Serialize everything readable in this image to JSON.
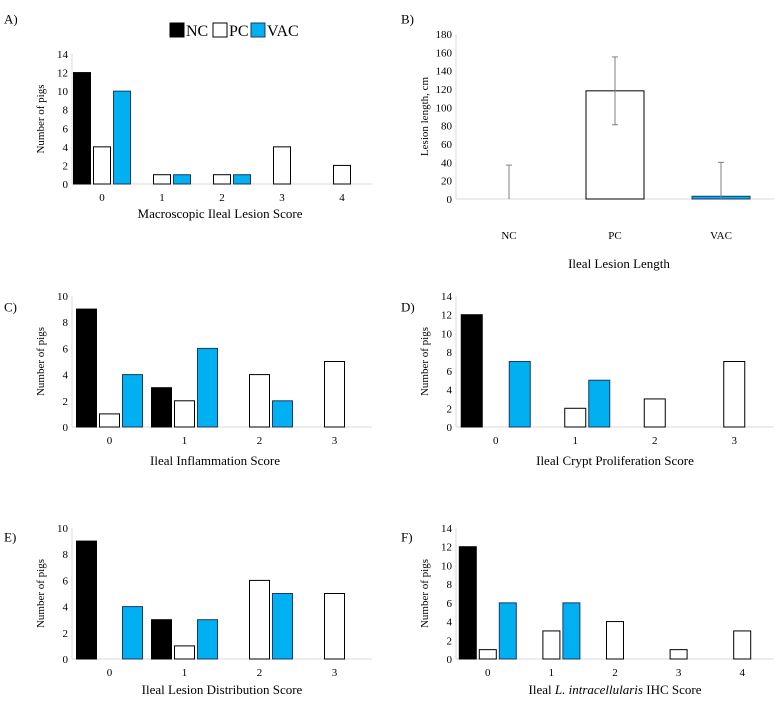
{
  "legend": {
    "items": [
      {
        "name": "NC",
        "color": "#000000"
      },
      {
        "name": "PC",
        "color": "#ffffff"
      },
      {
        "name": "VAC",
        "color": "#00b0f0"
      }
    ]
  },
  "chart_data": [
    {
      "id": "A",
      "label": "A)",
      "type": "bar",
      "xlabel": "Macroscopic Ileal Lesion Score",
      "ylabel": "Number of pigs",
      "ylim": [
        0,
        14
      ],
      "yticks": [
        0,
        2,
        4,
        6,
        8,
        10,
        12,
        14
      ],
      "categories": [
        "0",
        "1",
        "2",
        "3",
        "4"
      ],
      "series": [
        {
          "name": "NC",
          "values": [
            12,
            0,
            0,
            0,
            0
          ]
        },
        {
          "name": "PC",
          "values": [
            4,
            1,
            1,
            4,
            2
          ]
        },
        {
          "name": "VAC",
          "values": [
            10,
            1,
            1,
            0,
            0
          ]
        }
      ]
    },
    {
      "id": "B",
      "label": "B)",
      "type": "bar",
      "xlabel": "Ileal Lesion Length",
      "ylabel": "Lesion length, cm",
      "ylim": [
        0,
        180
      ],
      "yticks": [
        0,
        20,
        40,
        60,
        80,
        100,
        120,
        140,
        160,
        180
      ],
      "categories": [
        "NC",
        "PC",
        "VAC"
      ],
      "values": [
        0,
        118,
        3
      ],
      "error": [
        37,
        37,
        37
      ],
      "colors": [
        "#000000",
        "#ffffff",
        "#00b0f0"
      ]
    },
    {
      "id": "C",
      "label": "C)",
      "type": "bar",
      "xlabel": "Ileal Inflammation Score",
      "ylabel": "Number of pigs",
      "ylim": [
        0,
        10
      ],
      "yticks": [
        0,
        2,
        4,
        6,
        8,
        10
      ],
      "categories": [
        "0",
        "1",
        "2",
        "3"
      ],
      "series": [
        {
          "name": "NC",
          "values": [
            9,
            3,
            0,
            0
          ]
        },
        {
          "name": "PC",
          "values": [
            1,
            2,
            4,
            5
          ]
        },
        {
          "name": "VAC",
          "values": [
            4,
            6,
            2,
            0
          ]
        }
      ]
    },
    {
      "id": "D",
      "label": "D)",
      "type": "bar",
      "xlabel": "Ileal Crypt Proliferation Score",
      "ylabel": "Number of pigs",
      "ylim": [
        0,
        14
      ],
      "yticks": [
        0,
        2,
        4,
        6,
        8,
        10,
        12,
        14
      ],
      "categories": [
        "0",
        "1",
        "2",
        "3"
      ],
      "series": [
        {
          "name": "NC",
          "values": [
            12,
            0,
            0,
            0
          ]
        },
        {
          "name": "PC",
          "values": [
            0,
            2,
            3,
            7
          ]
        },
        {
          "name": "VAC",
          "values": [
            7,
            5,
            0,
            0
          ]
        }
      ]
    },
    {
      "id": "E",
      "label": "E)",
      "type": "bar",
      "xlabel": "Ileal Lesion Distribution Score",
      "ylabel": "Number of pigs",
      "ylim": [
        0,
        10
      ],
      "yticks": [
        0,
        2,
        4,
        6,
        8,
        10
      ],
      "categories": [
        "0",
        "1",
        "2",
        "3"
      ],
      "series": [
        {
          "name": "NC",
          "values": [
            9,
            3,
            0,
            0
          ]
        },
        {
          "name": "PC",
          "values": [
            0,
            1,
            6,
            5
          ]
        },
        {
          "name": "VAC",
          "values": [
            4,
            3,
            5,
            0
          ]
        }
      ]
    },
    {
      "id": "F",
      "label": "F)",
      "type": "bar",
      "xlabel_parts": [
        "Ileal ",
        "L. intracellularis",
        " IHC Score"
      ],
      "ylabel": "Number of pigs",
      "ylim": [
        0,
        14
      ],
      "yticks": [
        0,
        2,
        4,
        6,
        8,
        10,
        12,
        14
      ],
      "categories": [
        "0",
        "1",
        "2",
        "3",
        "4"
      ],
      "series": [
        {
          "name": "NC",
          "values": [
            12,
            0,
            0,
            0,
            0
          ]
        },
        {
          "name": "PC",
          "values": [
            1,
            3,
            4,
            1,
            3
          ]
        },
        {
          "name": "VAC",
          "values": [
            6,
            6,
            0,
            0,
            0
          ]
        }
      ]
    }
  ]
}
